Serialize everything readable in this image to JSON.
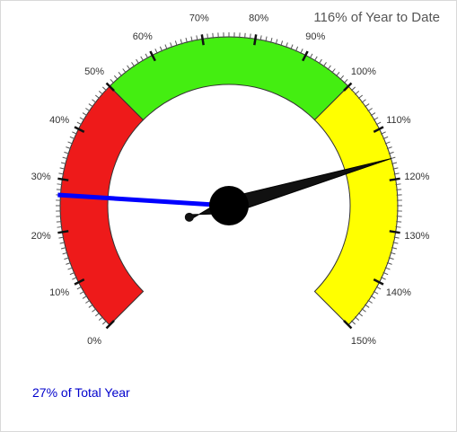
{
  "chart_data": {
    "type": "gauge",
    "title": "116% of Year to Date",
    "footer": "27% of Total Year",
    "range": [
      0,
      150
    ],
    "major_tick_step": 10,
    "minor_ticks_per_major": 10,
    "tick_labels": [
      "0%",
      "10%",
      "20%",
      "30%",
      "40%",
      "50%",
      "60%",
      "70%",
      "80%",
      "90%",
      "100%",
      "110%",
      "120%",
      "130%",
      "140%",
      "150%"
    ],
    "bands": [
      {
        "from": 0,
        "to": 50,
        "color": "#ee1a1a"
      },
      {
        "from": 50,
        "to": 100,
        "color": "#44ee11"
      },
      {
        "from": 100,
        "to": 150,
        "color": "#ffff00"
      }
    ],
    "needles": [
      {
        "value": 116,
        "color": "#111111",
        "style": "black-pointer"
      },
      {
        "value": 27,
        "color": "#0000ff",
        "style": "blue-line"
      }
    ]
  }
}
